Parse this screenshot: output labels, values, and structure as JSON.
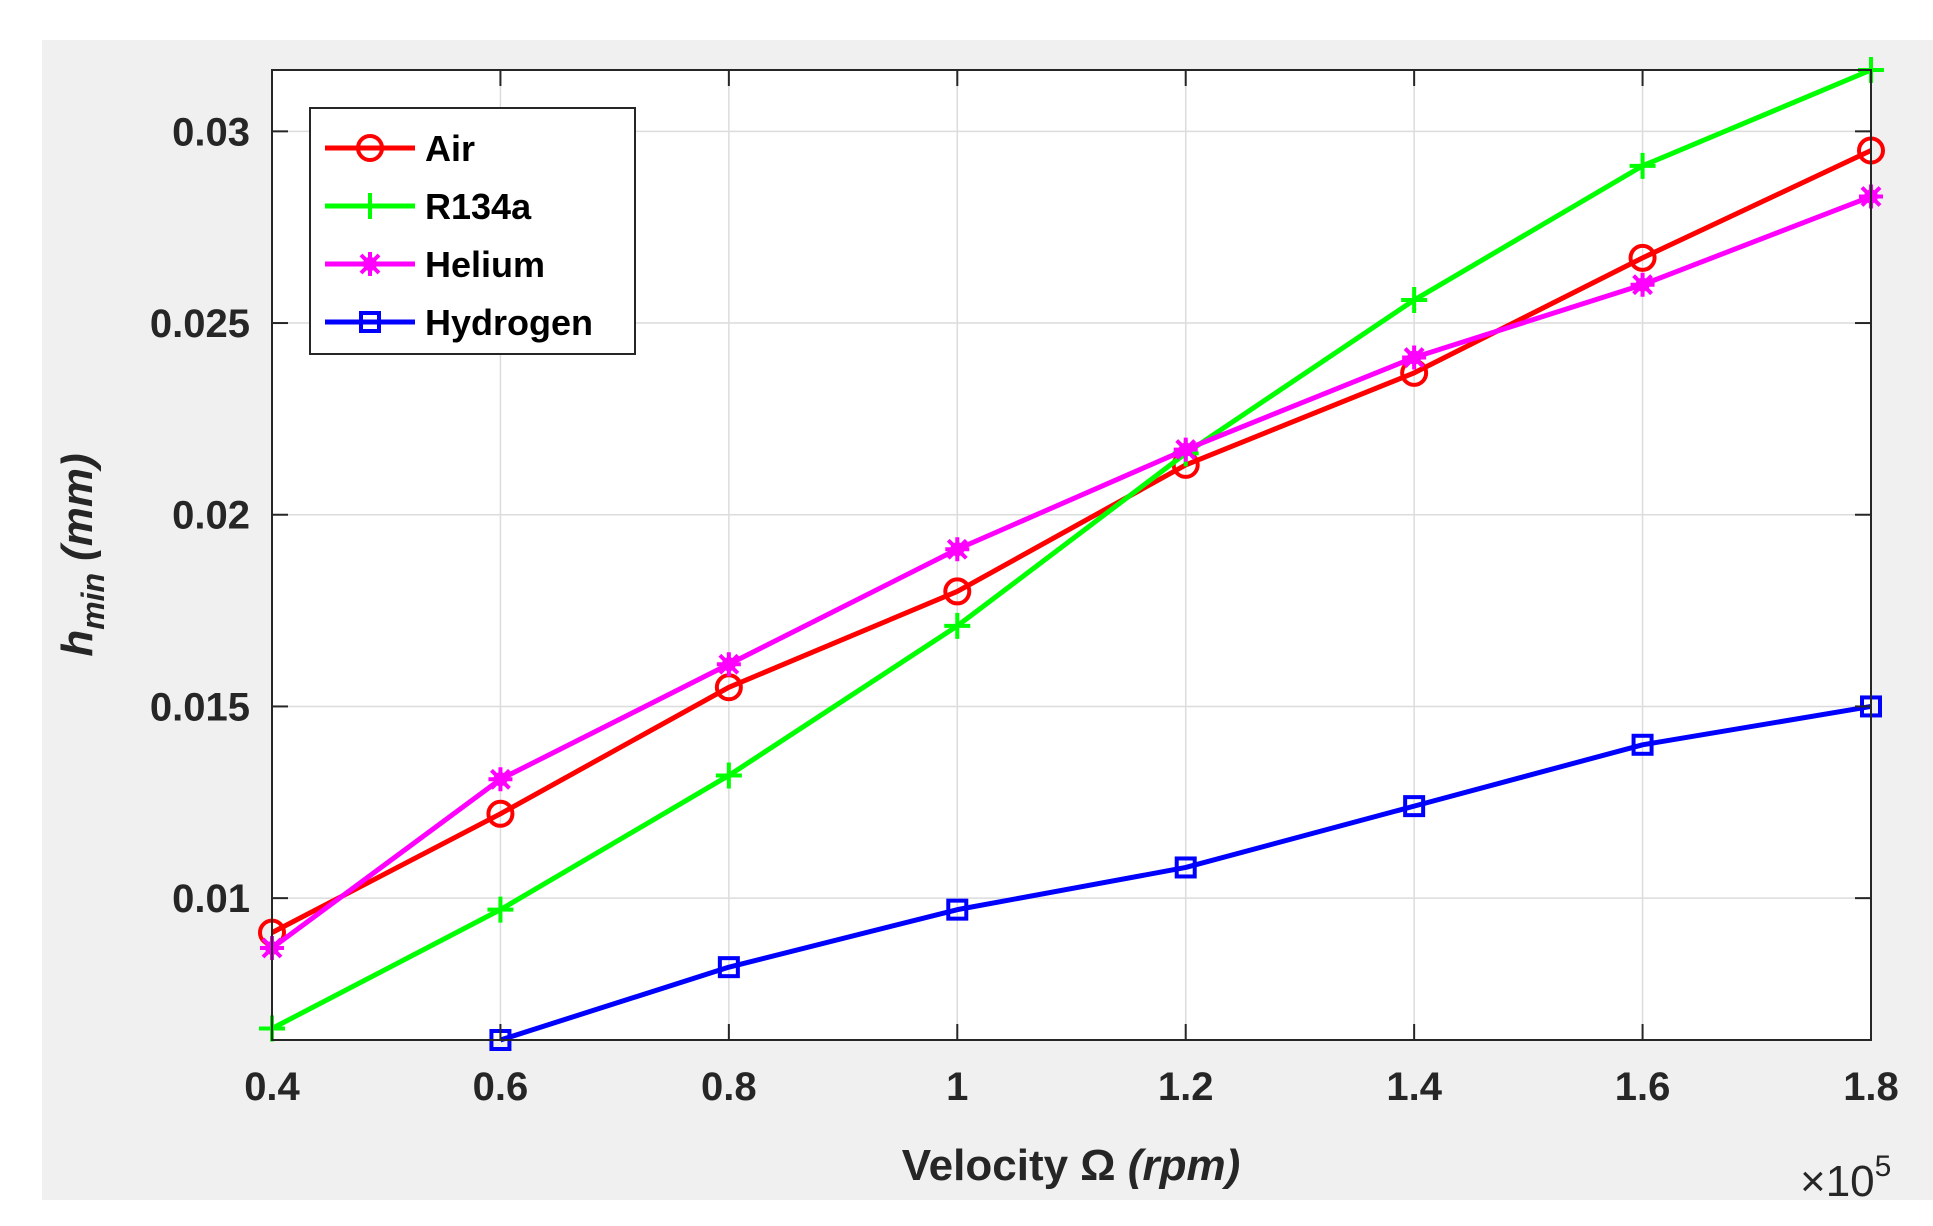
{
  "chart_data": {
    "type": "line",
    "title": "",
    "x": [
      0.4,
      0.6,
      0.8,
      1.0,
      1.2,
      1.4,
      1.6,
      1.8
    ],
    "x_tick_labels": [
      "0.4",
      "0.6",
      "0.8",
      "1",
      "1.2",
      "1.4",
      "1.6",
      "1.8"
    ],
    "y_tick_values": [
      0.01,
      0.015,
      0.02,
      0.025,
      0.03
    ],
    "y_tick_labels": [
      "0.01",
      "0.015",
      "0.02",
      "0.025",
      "0.03"
    ],
    "xlim": [
      0.4,
      1.8
    ],
    "ylim": [
      0.0063,
      0.0316
    ],
    "grid": true,
    "legend_position": "top-left",
    "xlabel": {
      "main": "Velocity Ω ",
      "unit": "(rpm)",
      "multiplier_prefix": "×10",
      "multiplier_exponent": "5"
    },
    "ylabel": {
      "symbol": "h",
      "subscript": "min",
      "unit": "(mm)"
    },
    "series": [
      {
        "name": "Air",
        "color": "#ff0000",
        "marker": "circle",
        "values": [
          0.0091,
          0.0122,
          0.0155,
          0.018,
          0.0213,
          0.0237,
          0.0267,
          0.0295
        ]
      },
      {
        "name": "R134a",
        "color": "#00ff00",
        "marker": "plus",
        "values": [
          0.0066,
          0.0097,
          0.0132,
          0.0171,
          0.0216,
          0.0256,
          0.0291,
          0.0316
        ]
      },
      {
        "name": "Helium",
        "color": "#ff00ff",
        "marker": "star",
        "values": [
          0.0087,
          0.0131,
          0.0161,
          0.0191,
          0.0217,
          0.0241,
          0.026,
          0.0283
        ]
      },
      {
        "name": "Hydrogen",
        "color": "#0000ff",
        "marker": "square",
        "values": [
          null,
          0.0063,
          0.0082,
          0.0097,
          0.0108,
          0.0124,
          0.014,
          0.015
        ]
      }
    ]
  }
}
